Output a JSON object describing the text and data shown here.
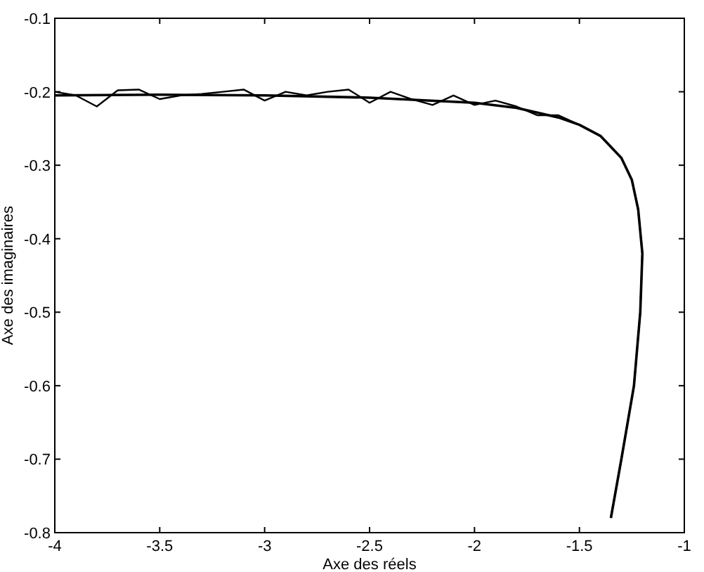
{
  "chart_data": {
    "type": "line",
    "xlabel": "Axe des réels",
    "ylabel": "Axe des imaginaires",
    "xlim": [
      -4,
      -1
    ],
    "ylim": [
      -0.8,
      -0.1
    ],
    "xticks": [
      -4,
      -3.5,
      -3,
      -2.5,
      -2,
      -1.5,
      -1
    ],
    "yticks": [
      -0.8,
      -0.7,
      -0.6,
      -0.5,
      -0.4,
      -0.3,
      -0.2,
      -0.1
    ],
    "grid": false,
    "marker": "none",
    "line_style": "solid",
    "series": [
      {
        "color": "#000000",
        "x": [
          -4,
          -3.9,
          -3.8,
          -3.7,
          -3.6,
          -3.5,
          -3.4,
          -3.3,
          -3.2,
          -3.1,
          -3.0,
          -2.9,
          -2.8,
          -2.7,
          -2.6,
          -2.5,
          -2.4,
          -2.3,
          -2.2,
          -2.1,
          -2.0,
          -1.9,
          -1.8,
          -1.7,
          -1.6,
          -1.5,
          -1.4,
          -1.3,
          -1.25,
          -1.22,
          -1.2,
          -1.21,
          -1.24,
          -1.3,
          -1.35
        ],
        "values": [
          -0.2,
          -0.205,
          -0.22,
          -0.198,
          -0.197,
          -0.21,
          -0.205,
          -0.203,
          -0.2,
          -0.197,
          -0.212,
          -0.2,
          -0.205,
          -0.2,
          -0.197,
          -0.215,
          -0.2,
          -0.21,
          -0.218,
          -0.205,
          -0.218,
          -0.212,
          -0.22,
          -0.232,
          -0.232,
          -0.245,
          -0.26,
          -0.29,
          -0.32,
          -0.36,
          -0.42,
          -0.5,
          -0.6,
          -0.7,
          -0.78
        ]
      },
      {
        "color": "#000000",
        "x": [
          -4,
          -3.5,
          -3,
          -2.5,
          -2,
          -1.8,
          -1.6,
          -1.5,
          -1.4,
          -1.3,
          -1.25,
          -1.22,
          -1.2,
          -1.21,
          -1.24,
          -1.3,
          -1.35
        ],
        "values": [
          -0.205,
          -0.204,
          -0.205,
          -0.208,
          -0.215,
          -0.222,
          -0.235,
          -0.245,
          -0.26,
          -0.29,
          -0.32,
          -0.36,
          -0.42,
          -0.5,
          -0.6,
          -0.7,
          -0.78
        ]
      }
    ]
  }
}
